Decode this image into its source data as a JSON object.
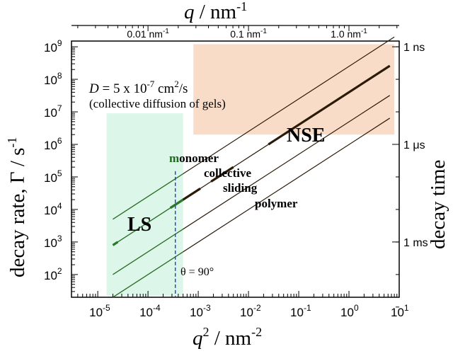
{
  "chart_data": {
    "type": "line",
    "x_scale": "log",
    "y_scale": "log",
    "xlim": [
      3e-06,
      10
    ],
    "ylim": [
      20,
      1500000000
    ],
    "xlabel": {
      "base": "q",
      "sup": "2",
      "unit": " / nm",
      "unit_sup": "-2"
    },
    "ylabel": "decay rate, Γ / s",
    "ylabel_sup": "-1",
    "x_ticks": [
      {
        "value": 1e-05,
        "base": "10",
        "exp": "-5"
      },
      {
        "value": 0.0001,
        "base": "10",
        "exp": "-4"
      },
      {
        "value": 0.001,
        "base": "10",
        "exp": "-3"
      },
      {
        "value": 0.01,
        "base": "10",
        "exp": "-2"
      },
      {
        "value": 0.1,
        "base": "10",
        "exp": "-1"
      },
      {
        "value": 1,
        "base": "10",
        "exp": "0"
      },
      {
        "value": 10,
        "base": "10",
        "exp": "1"
      }
    ],
    "y_ticks": [
      {
        "value": 100,
        "base": "10",
        "exp": "2"
      },
      {
        "value": 1000,
        "base": "10",
        "exp": "3"
      },
      {
        "value": 10000,
        "base": "10",
        "exp": "4"
      },
      {
        "value": 100000,
        "base": "10",
        "exp": "5"
      },
      {
        "value": 1000000,
        "base": "10",
        "exp": "6"
      },
      {
        "value": 10000000,
        "base": "10",
        "exp": "7"
      },
      {
        "value": 100000000,
        "base": "10",
        "exp": "8"
      },
      {
        "value": 1000000000,
        "base": "10",
        "exp": "9"
      }
    ],
    "top_axis": {
      "label": "q / nm",
      "label_sup": "-1",
      "ticks": [
        {
          "q": 0.01,
          "text": "0.01 nm",
          "sup": "-1"
        },
        {
          "q": 0.1,
          "text": "0.1 nm",
          "sup": "-1"
        },
        {
          "q": 1,
          "text": "1.0 nm",
          "sup": "-1"
        }
      ]
    },
    "right_axis": {
      "label": "decay time",
      "ticks": [
        {
          "gamma": 1000000000,
          "text": "1 ns"
        },
        {
          "gamma": 1000000,
          "text": "1 μs"
        },
        {
          "gamma": 1000,
          "text": "1 ms"
        }
      ]
    },
    "regions": [
      {
        "name": "LS",
        "x": [
          1.5e-05,
          0.0005
        ],
        "y": [
          22,
          9000000
        ],
        "color": "#dcf7ea"
      },
      {
        "name": "NSE",
        "x": [
          0.0008,
          8
        ],
        "y": [
          2000000,
          1200000000
        ],
        "color": "#f8dcc8"
      }
    ],
    "series": [
      {
        "name": "monomer",
        "x": [
          2e-05,
          8
        ],
        "y": [
          5000,
          2000000000
        ],
        "width": 1.2
      },
      {
        "name": "collective",
        "x_start": 2e-05,
        "x_end": 6.5,
        "x": [
          2e-05,
          0.00035,
          0.0008,
          0.0011,
          0.0018,
          0.005,
          6.5
        ],
        "y": [
          800,
          14000,
          32000,
          44000,
          72000,
          200000,
          260000000
        ],
        "width": 1.2,
        "thick_segments": [
          [
            2e-05,
            2.5e-05
          ],
          [
            0.00028,
            0.0011
          ],
          [
            0.0018,
            0.005
          ],
          [
            0.025,
            6.5
          ]
        ]
      },
      {
        "name": "sliding",
        "x": [
          2e-05,
          6.5
        ],
        "y": [
          100,
          32000000
        ],
        "width": 1.2
      },
      {
        "name": "polymer",
        "x": [
          2e-05,
          6.5
        ],
        "y": [
          20,
          6400000
        ],
        "width": 1.2
      }
    ],
    "vline": {
      "x": 0.00035,
      "y": [
        20,
        150000
      ],
      "color": "#1f3fd0",
      "label": "θ = 90°"
    },
    "annotations": {
      "diffusion_line1": "D = 5 x 10",
      "diffusion_exp": "-7",
      "diffusion_unit": " cm",
      "diffusion_unit_sup": "2",
      "diffusion_unit_tail": "/s",
      "diffusion_line2": "(collective diffusion of gels)",
      "ls_label": "LS",
      "nse_label": "NSE",
      "monomer": "monomer",
      "monomer_m": "m",
      "monomer_rest": "onomer",
      "collective": "collective",
      "sliding": "sliding",
      "polymer": "polymer"
    },
    "colors": {
      "ls_text": "#1e6b1e",
      "ls_line": "#2a7a2a",
      "nse_text": "#3a2a10",
      "line": "#2a1a08",
      "vline": "#1f3fd0"
    }
  }
}
